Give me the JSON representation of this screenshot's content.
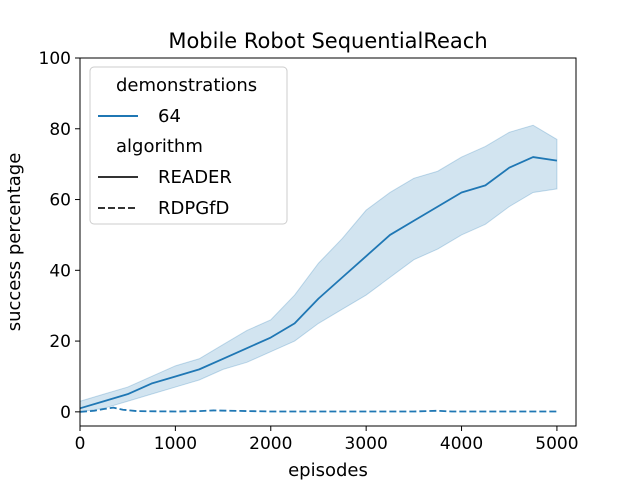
{
  "chart_data": {
    "type": "line",
    "title": "Mobile Robot SequentialReach",
    "xlabel": "episodes",
    "ylabel": "success percentage",
    "xlim": [
      0,
      5200
    ],
    "ylim": [
      -4,
      100
    ],
    "xticks": [
      0,
      1000,
      2000,
      3000,
      4000,
      5000
    ],
    "yticks": [
      0,
      20,
      40,
      60,
      80,
      100
    ],
    "grid": false,
    "legend": {
      "placement": "top-left",
      "groups": [
        {
          "title": "demonstrations",
          "entries": [
            {
              "label": "64",
              "color": "#1f77b4",
              "style": "solid"
            }
          ]
        },
        {
          "title": "algorithm",
          "entries": [
            {
              "label": "READER",
              "color": "#333333",
              "style": "solid"
            },
            {
              "label": "RDPGfD",
              "color": "#333333",
              "style": "dashed"
            }
          ]
        }
      ]
    },
    "series": [
      {
        "algorithm": "READER",
        "demonstrations": "64",
        "color": "#1f77b4",
        "style": "solid",
        "x": [
          0,
          250,
          500,
          750,
          1000,
          1250,
          1500,
          1750,
          2000,
          2250,
          2500,
          2750,
          3000,
          3250,
          3500,
          3750,
          4000,
          4250,
          4500,
          4750,
          5000
        ],
        "y": [
          1,
          3,
          5,
          8,
          10,
          12,
          15,
          18,
          21,
          25,
          32,
          38,
          44,
          50,
          54,
          58,
          62,
          64,
          69,
          72,
          71
        ],
        "lower": [
          0,
          1,
          3,
          5,
          7,
          9,
          12,
          14,
          17,
          20,
          25,
          29,
          33,
          38,
          43,
          46,
          50,
          53,
          58,
          62,
          63
        ],
        "upper": [
          3,
          5,
          7,
          10,
          13,
          15,
          19,
          23,
          26,
          33,
          42,
          49,
          57,
          62,
          66,
          68,
          72,
          75,
          79,
          81,
          77
        ]
      },
      {
        "algorithm": "RDPGfD",
        "demonstrations": "64",
        "color": "#1f77b4",
        "style": "dashed",
        "x": [
          0,
          150,
          250,
          350,
          450,
          600,
          1000,
          1250,
          1400,
          2000,
          3000,
          3500,
          3750,
          3900,
          4500,
          5000
        ],
        "y": [
          0,
          0.3,
          0.8,
          1.2,
          0.6,
          0.2,
          0.1,
          0.2,
          0.4,
          0.1,
          0.1,
          0.1,
          0.3,
          0.1,
          0.1,
          0.1
        ]
      }
    ]
  }
}
